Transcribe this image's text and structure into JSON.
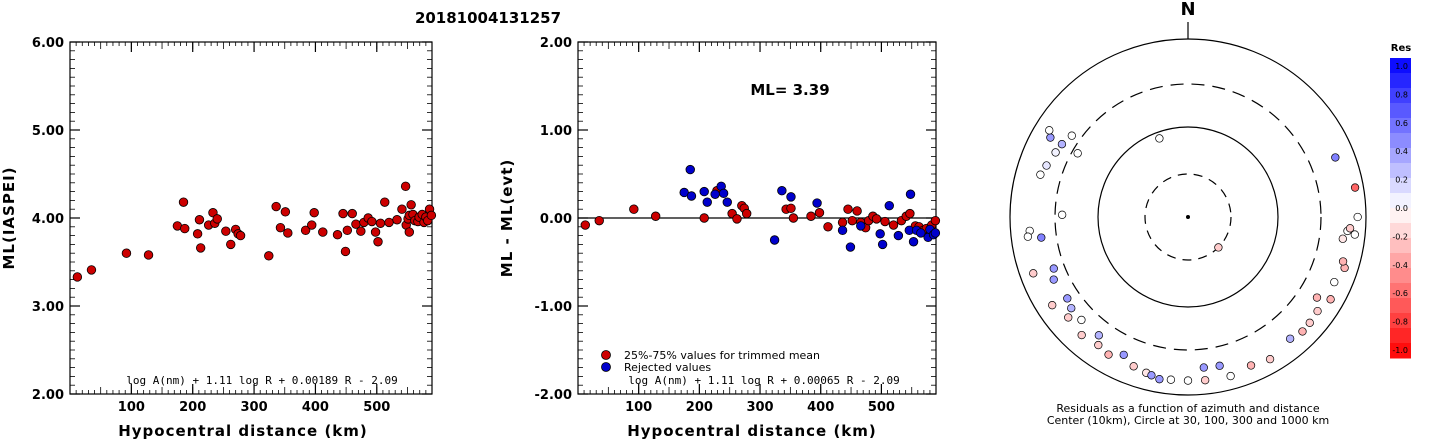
{
  "title": "20181004131257",
  "colors": {
    "accepted": "#cc0000",
    "rejected": "#0000cc",
    "axis": "#000000"
  },
  "chart_data": [
    {
      "type": "scatter",
      "panel": "left",
      "xlabel": "Hypocentral distance (km)",
      "ylabel": "ML(IASPEI)",
      "xlim": [
        0,
        590
      ],
      "ylim": [
        2.0,
        6.0
      ],
      "xticks": [
        "100",
        "200",
        "300",
        "400",
        "500"
      ],
      "yticks": [
        "2.00",
        "3.00",
        "4.00",
        "5.00",
        "6.00"
      ],
      "formula": "log A(nm) + 1.11 log R + 0.00189 R - 2.09",
      "series": [
        {
          "values": [
            [
              12,
              3.33
            ],
            [
              35,
              3.41
            ],
            [
              92,
              3.6
            ],
            [
              128,
              3.58
            ],
            [
              175,
              3.91
            ],
            [
              185,
              4.18
            ],
            [
              187,
              3.88
            ],
            [
              208,
              3.82
            ],
            [
              211,
              3.98
            ],
            [
              213,
              3.66
            ],
            [
              226,
              3.92
            ],
            [
              233,
              4.06
            ],
            [
              236,
              3.94
            ],
            [
              240,
              3.99
            ],
            [
              254,
              3.85
            ],
            [
              262,
              3.7
            ],
            [
              270,
              3.87
            ],
            [
              274,
              3.82
            ],
            [
              278,
              3.8
            ],
            [
              324,
              3.57
            ],
            [
              336,
              4.13
            ],
            [
              343,
              3.89
            ],
            [
              351,
              4.07
            ],
            [
              355,
              3.83
            ],
            [
              384,
              3.86
            ],
            [
              394,
              3.92
            ],
            [
              398,
              4.06
            ],
            [
              412,
              3.84
            ],
            [
              436,
              3.81
            ],
            [
              445,
              4.05
            ],
            [
              449,
              3.62
            ],
            [
              452,
              3.86
            ],
            [
              460,
              4.05
            ],
            [
              466,
              3.93
            ],
            [
              474,
              3.85
            ],
            [
              479,
              3.95
            ],
            [
              486,
              4.0
            ],
            [
              492,
              3.96
            ],
            [
              498,
              3.84
            ],
            [
              502,
              3.73
            ],
            [
              506,
              3.94
            ],
            [
              513,
              4.18
            ],
            [
              520,
              3.95
            ],
            [
              533,
              3.98
            ],
            [
              541,
              4.1
            ],
            [
              547,
              4.36
            ],
            [
              548,
              3.92
            ],
            [
              551,
              3.99
            ],
            [
              553,
              4.03
            ],
            [
              553,
              3.84
            ],
            [
              556,
              4.15
            ],
            [
              559,
              4.04
            ],
            [
              562,
              3.97
            ],
            [
              567,
              3.96
            ],
            [
              569,
              4.01
            ],
            [
              574,
              4.04
            ],
            [
              577,
              3.95
            ],
            [
              580,
              4.01
            ],
            [
              583,
              3.97
            ],
            [
              586,
              4.1
            ],
            [
              589,
              4.03
            ]
          ]
        }
      ]
    },
    {
      "type": "scatter",
      "panel": "middle",
      "xlabel": "Hypocentral distance (km)",
      "ylabel": "ML - ML(evt)",
      "xlim": [
        0,
        590
      ],
      "ylim": [
        -2.0,
        2.0
      ],
      "xticks": [
        "100",
        "200",
        "300",
        "400",
        "500"
      ],
      "yticks": [
        "-2.00",
        "-1.00",
        "0.00",
        "1.00",
        "2.00"
      ],
      "ml_label": "ML= 3.39",
      "formula": "log A(nm) + 1.11 log R + 0.00065 R - 2.09",
      "legend": [
        "25%-75% values for trimmed mean",
        "Rejected values"
      ],
      "series": [
        {
          "name": "25%-75% values for trimmed mean",
          "values": [
            [
              12,
              -0.08
            ],
            [
              35,
              -0.03
            ],
            [
              92,
              0.1
            ],
            [
              128,
              0.02
            ],
            [
              208,
              0.0
            ],
            [
              229,
              0.31
            ],
            [
              254,
              0.05
            ],
            [
              262,
              -0.01
            ],
            [
              270,
              0.14
            ],
            [
              274,
              0.11
            ],
            [
              278,
              0.05
            ],
            [
              343,
              0.1
            ],
            [
              351,
              0.11
            ],
            [
              355,
              0.0
            ],
            [
              384,
              0.02
            ],
            [
              398,
              0.06
            ],
            [
              412,
              -0.1
            ],
            [
              436,
              -0.05
            ],
            [
              445,
              0.1
            ],
            [
              452,
              -0.03
            ],
            [
              460,
              0.08
            ],
            [
              466,
              -0.05
            ],
            [
              474,
              -0.11
            ],
            [
              479,
              -0.03
            ],
            [
              486,
              0.02
            ],
            [
              492,
              -0.01
            ],
            [
              506,
              -0.04
            ],
            [
              520,
              -0.08
            ],
            [
              533,
              -0.03
            ],
            [
              541,
              0.02
            ],
            [
              547,
              0.05
            ],
            [
              556,
              -0.09
            ],
            [
              562,
              -0.1
            ],
            [
              569,
              -0.14
            ],
            [
              574,
              -0.12
            ],
            [
              583,
              -0.08
            ],
            [
              589,
              -0.03
            ]
          ]
        },
        {
          "name": "Rejected values",
          "values": [
            [
              175,
              0.29
            ],
            [
              185,
              0.55
            ],
            [
              187,
              0.25
            ],
            [
              208,
              0.3
            ],
            [
              213,
              0.18
            ],
            [
              226,
              0.27
            ],
            [
              236,
              0.36
            ],
            [
              240,
              0.28
            ],
            [
              246,
              0.18
            ],
            [
              324,
              -0.25
            ],
            [
              336,
              0.31
            ],
            [
              351,
              0.24
            ],
            [
              394,
              0.17
            ],
            [
              436,
              -0.14
            ],
            [
              449,
              -0.33
            ],
            [
              466,
              -0.09
            ],
            [
              498,
              -0.18
            ],
            [
              502,
              -0.3
            ],
            [
              513,
              0.14
            ],
            [
              528,
              -0.2
            ],
            [
              546,
              -0.14
            ],
            [
              548,
              0.27
            ],
            [
              553,
              -0.27
            ],
            [
              558,
              -0.14
            ],
            [
              565,
              -0.17
            ],
            [
              577,
              -0.22
            ],
            [
              580,
              -0.13
            ],
            [
              586,
              -0.19
            ],
            [
              589,
              -0.17
            ]
          ]
        }
      ]
    }
  ],
  "polar": {
    "north_label": "N",
    "caption_line1": "Residuals as a function of azimuth and distance",
    "caption_line2": "Center (10km), Circle at 30, 100, 300 and 1000 km",
    "points": [
      {
        "az": 135,
        "dist": 30,
        "res": -0.2
      },
      {
        "az": 340,
        "dist": 85,
        "res": 0.0
      },
      {
        "az": 300,
        "dist": 260,
        "res": 0.0
      },
      {
        "az": 305,
        "dist": 380,
        "res": 0.0
      },
      {
        "az": 300,
        "dist": 420,
        "res": 0.3
      },
      {
        "az": 296,
        "dist": 440,
        "res": 0.05
      },
      {
        "az": 290,
        "dist": 480,
        "res": 0.1
      },
      {
        "az": 286,
        "dist": 520,
        "res": 0.0
      },
      {
        "az": 300,
        "dist": 600,
        "res": 0.4
      },
      {
        "az": 302,
        "dist": 680,
        "res": 0.0
      },
      {
        "az": 271,
        "dist": 250,
        "res": 0.0
      },
      {
        "az": 262,
        "dist": 450,
        "res": 0.5
      },
      {
        "az": 265,
        "dist": 600,
        "res": 0.0
      },
      {
        "az": 263,
        "dist": 640,
        "res": 0.0
      },
      {
        "az": 249,
        "dist": 400,
        "res": 0.4
      },
      {
        "az": 245,
        "dist": 450,
        "res": 0.4
      },
      {
        "az": 250,
        "dist": 700,
        "res": -0.2
      },
      {
        "az": 236,
        "dist": 420,
        "res": 0.4
      },
      {
        "az": 232,
        "dist": 450,
        "res": 0.3
      },
      {
        "az": 237,
        "dist": 650,
        "res": -0.2
      },
      {
        "az": 226,
        "dist": 450,
        "res": 0.0
      },
      {
        "az": 222,
        "dist": 600,
        "res": -0.2
      },
      {
        "az": 230,
        "dist": 560,
        "res": -0.2
      },
      {
        "az": 217,
        "dist": 450,
        "res": 0.3
      },
      {
        "az": 215,
        "dist": 560,
        "res": -0.2
      },
      {
        "az": 205,
        "dist": 500,
        "res": 0.4
      },
      {
        "az": 210,
        "dist": 600,
        "res": -0.3
      },
      {
        "az": 200,
        "dist": 600,
        "res": -0.2
      },
      {
        "az": 195,
        "dist": 640,
        "res": -0.1
      },
      {
        "az": 193,
        "dist": 660,
        "res": 0.4
      },
      {
        "az": 190,
        "dist": 700,
        "res": 0.4
      },
      {
        "az": 186,
        "dist": 680,
        "res": 0.0
      },
      {
        "az": 180,
        "dist": 680,
        "res": 0.0
      },
      {
        "az": 174,
        "dist": 490,
        "res": 0.4
      },
      {
        "az": 174,
        "dist": 690,
        "res": -0.2
      },
      {
        "az": 168,
        "dist": 500,
        "res": 0.4
      },
      {
        "az": 165,
        "dist": 700,
        "res": 0.0
      },
      {
        "az": 157,
        "dist": 640,
        "res": -0.3
      },
      {
        "az": 150,
        "dist": 690,
        "res": -0.2
      },
      {
        "az": 140,
        "dist": 600,
        "res": 0.3
      },
      {
        "az": 135,
        "dist": 650,
        "res": -0.3
      },
      {
        "az": 131,
        "dist": 640,
        "res": -0.2
      },
      {
        "az": 126,
        "dist": 620,
        "res": -0.2
      },
      {
        "az": 122,
        "dist": 500,
        "res": -0.3
      },
      {
        "az": 120,
        "dist": 700,
        "res": -0.3
      },
      {
        "az": 114,
        "dist": 620,
        "res": 0.0
      },
      {
        "az": 108,
        "dist": 700,
        "res": -0.3
      },
      {
        "az": 106,
        "dist": 640,
        "res": -0.3
      },
      {
        "az": 98,
        "dist": 560,
        "res": -0.1
      },
      {
        "az": 95,
        "dist": 620,
        "res": 0.0
      },
      {
        "az": 94,
        "dist": 660,
        "res": -0.2
      },
      {
        "az": 90,
        "dist": 800,
        "res": 0.0
      },
      {
        "az": 80,
        "dist": 800,
        "res": -0.6
      },
      {
        "az": 68,
        "dist": 600,
        "res": 0.5
      },
      {
        "az": 96,
        "dist": 760,
        "res": 0.0
      }
    ],
    "colorbar": {
      "title": "Res",
      "labels": [
        "1.0",
        "0.8",
        "0.6",
        "0.4",
        "0.2",
        "0.0",
        "-0.2",
        "-0.4",
        "-0.6",
        "-0.8",
        "-1.0"
      ]
    }
  }
}
